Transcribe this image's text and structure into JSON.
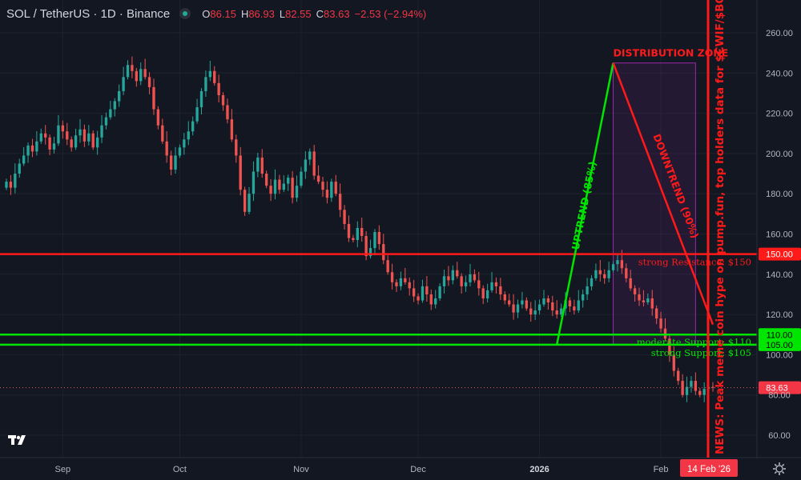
{
  "header": {
    "symbol": "SOL / TetherUS · 1D · Binance",
    "ohlc": [
      {
        "k": "O",
        "v": "86.15"
      },
      {
        "k": "H",
        "v": "86.93"
      },
      {
        "k": "L",
        "v": "82.55"
      },
      {
        "k": "C",
        "v": "83.63"
      }
    ],
    "change": "−2.53 (−2.94%)"
  },
  "colors": {
    "background": "#131722",
    "up": "#26a69a",
    "down": "#ef5350",
    "green_line": "#00e600",
    "red_line": "#ff1a1a",
    "grid": "#1e222d"
  },
  "chart_data": {
    "type": "candlestick",
    "y_axis": {
      "ticks": [
        "60.00",
        "80.00",
        "100.00",
        "120.00",
        "140.00",
        "160.00",
        "180.00",
        "200.00",
        "220.00",
        "240.00",
        "260.00"
      ],
      "range": [
        50,
        272
      ]
    },
    "x_axis": {
      "labels": [
        "Sep",
        "Oct",
        "Nov",
        "Dec",
        "2026",
        "Feb"
      ]
    },
    "last_price": 83.63,
    "last_price_label": "83.63",
    "series": [
      {
        "name": "",
        "close": [
          186,
          183,
          190,
          195,
          199,
          204,
          201,
          206,
          210,
          208,
          202,
          205,
          214,
          211,
          207,
          203,
          209,
          212,
          206,
          210,
          203,
          208,
          214,
          218,
          222,
          226,
          231,
          238,
          244,
          241,
          236,
          242,
          238,
          233,
          222,
          214,
          206,
          199,
          192,
          199,
          203,
          207,
          211,
          216,
          223,
          231,
          238,
          241,
          235,
          229,
          224,
          217,
          207,
          199,
          182,
          171,
          180,
          191,
          198,
          190,
          184,
          180,
          187,
          182,
          185,
          188,
          178,
          184,
          191,
          197,
          201,
          189,
          186,
          182,
          178,
          186,
          180,
          172,
          165,
          158,
          157,
          163,
          159,
          149,
          153,
          161,
          155,
          147,
          141,
          136,
          134,
          138,
          136,
          133,
          129,
          127,
          134,
          130,
          125,
          128,
          134,
          139,
          137,
          142,
          139,
          134,
          136,
          140,
          137,
          133,
          128,
          132,
          136,
          134,
          130,
          127,
          125,
          121,
          125,
          127,
          123,
          120,
          122,
          125,
          128,
          126,
          122,
          120,
          123,
          127,
          124,
          122,
          127,
          130,
          134,
          138,
          142,
          140,
          138,
          142,
          145,
          147,
          143,
          138,
          133,
          130,
          127,
          126,
          128,
          123,
          118,
          113,
          108,
          100,
          92,
          87,
          80,
          84,
          87,
          82,
          80,
          83,
          84,
          83.63
        ]
      }
    ],
    "horizontal_lines": [
      {
        "name": "strong Resistance",
        "label": "strong Resistance: $150",
        "axis_label": "150.00",
        "value": 150
      },
      {
        "name": "moderate Support",
        "label": "moderate Support: $110",
        "axis_label": "110.00",
        "value": 110
      },
      {
        "name": "strong Support",
        "label": "strong Support: $105",
        "axis_label": "105.00",
        "value": 105
      }
    ],
    "annotations": {
      "uptrend": "UPTREND (85%)",
      "downtrend": "DOWNTREND (90%)",
      "distribution_zone": "DISTRIBUTION ZONE",
      "news": "NEWS: Peak meme coin hype on pump.fun, top holders data for $CWIF/$BONK"
    },
    "crosshair_date": "14 Feb '26"
  }
}
